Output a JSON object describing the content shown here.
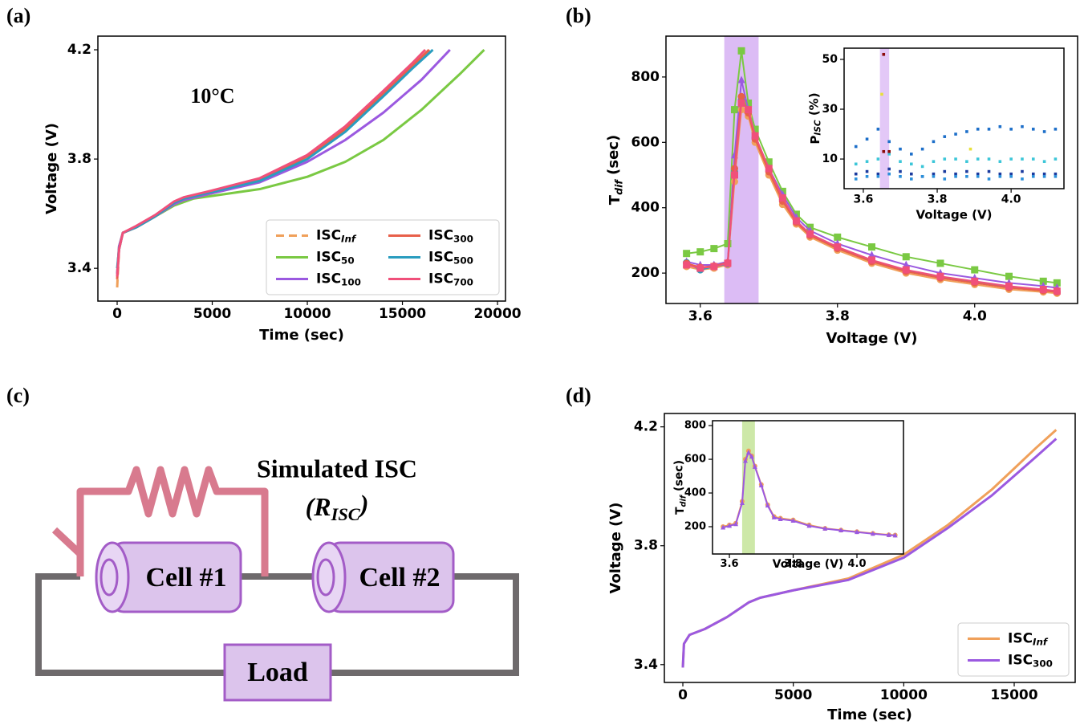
{
  "chart_data": [
    {
      "type": "line",
      "panel_label": "(a)",
      "annotation": "10°C",
      "xlabel": "Time (sec)",
      "ylabel": "Voltage (V)",
      "xlim": [
        -1013,
        20420
      ],
      "xticks": [
        0,
        5000,
        10000,
        15000,
        20000
      ],
      "ylim": [
        3.28,
        4.25
      ],
      "yticks": [
        3.4,
        3.8,
        4.2
      ],
      "legend": "lower right",
      "legend_columns": 2,
      "series": [
        {
          "name": "ISC_Inf",
          "color": "#f0a05a",
          "linestyle": "dashed",
          "x": [
            0,
            100,
            300,
            1000,
            2000,
            3000,
            3500,
            5000,
            7500,
            10000,
            12000,
            14000,
            15500,
            16500
          ],
          "values": [
            3.33,
            3.47,
            3.53,
            3.55,
            3.59,
            3.64,
            3.655,
            3.68,
            3.725,
            3.81,
            3.91,
            4.04,
            4.14,
            4.2
          ]
        },
        {
          "name": "ISC_50",
          "color": "#7ac943",
          "x": [
            0,
            100,
            300,
            1000,
            2000,
            3000,
            4000,
            5000,
            7500,
            10000,
            12000,
            14000,
            16000,
            18000,
            19300
          ],
          "values": [
            3.38,
            3.48,
            3.53,
            3.55,
            3.59,
            3.63,
            3.655,
            3.665,
            3.69,
            3.735,
            3.79,
            3.87,
            3.98,
            4.11,
            4.2
          ]
        },
        {
          "name": "ISC_100",
          "color": "#9b59e0",
          "x": [
            0,
            100,
            300,
            1000,
            2000,
            3000,
            3500,
            5000,
            7500,
            10000,
            12000,
            14000,
            16000,
            17500
          ],
          "values": [
            3.38,
            3.48,
            3.53,
            3.55,
            3.59,
            3.635,
            3.65,
            3.675,
            3.715,
            3.79,
            3.87,
            3.97,
            4.09,
            4.2
          ]
        },
        {
          "name": "ISC_300",
          "color": "#e8604a",
          "x": [
            0,
            100,
            300,
            1000,
            2000,
            3000,
            3500,
            5000,
            7500,
            10000,
            12000,
            14000,
            15500,
            16400
          ],
          "values": [
            3.36,
            3.47,
            3.53,
            3.55,
            3.59,
            3.64,
            3.655,
            3.68,
            3.725,
            3.81,
            3.91,
            4.04,
            4.14,
            4.2
          ]
        },
        {
          "name": "ISC_500",
          "color": "#2a9dbf",
          "x": [
            0,
            100,
            300,
            1000,
            2000,
            3000,
            3500,
            5000,
            7500,
            10000,
            12000,
            14000,
            15500,
            16600
          ],
          "values": [
            3.4,
            3.47,
            3.53,
            3.55,
            3.59,
            3.64,
            3.655,
            3.68,
            3.72,
            3.8,
            3.9,
            4.03,
            4.13,
            4.2
          ]
        },
        {
          "name": "ISC_700",
          "color": "#f0507a",
          "x": [
            0,
            100,
            300,
            1000,
            2000,
            3000,
            3500,
            5000,
            7500,
            10000,
            12000,
            14000,
            15500,
            16200
          ],
          "values": [
            3.37,
            3.47,
            3.53,
            3.555,
            3.595,
            3.645,
            3.66,
            3.685,
            3.73,
            3.815,
            3.92,
            4.05,
            4.15,
            4.2
          ]
        }
      ]
    },
    {
      "type": "line",
      "panel_label": "(b)",
      "xlabel": "Voltage (V)",
      "ylabel": "T_dif (sec)",
      "xlim": [
        3.55,
        4.15
      ],
      "xticks": [
        3.6,
        3.8,
        {
          "value": 4,
          "label": "4.0"
        }
      ],
      "ylim": [
        107,
        925
      ],
      "yticks": [
        200,
        400,
        600,
        800
      ],
      "highlight": [
        3.635,
        3.685
      ],
      "highlight_color": "#dcbcf5",
      "x": [
        3.58,
        3.6,
        3.62,
        3.64,
        3.65,
        3.66,
        3.67,
        3.68,
        3.7,
        3.72,
        3.74,
        3.76,
        3.8,
        3.85,
        3.9,
        3.95,
        4.0,
        4.05,
        4.1,
        4.12
      ],
      "series": [
        {
          "color": "#7ac943",
          "marker": "square",
          "values": [
            260,
            265,
            275,
            290,
            700,
            880,
            720,
            640,
            540,
            450,
            380,
            340,
            310,
            280,
            250,
            230,
            210,
            190,
            175,
            170
          ]
        },
        {
          "color": "#9b59e0",
          "marker": "triangle",
          "values": [
            235,
            225,
            225,
            235,
            560,
            790,
            700,
            620,
            520,
            440,
            370,
            330,
            290,
            255,
            225,
            200,
            185,
            170,
            160,
            155
          ]
        },
        {
          "color": "#f0a05a",
          "marker": "circle",
          "values": [
            220,
            210,
            215,
            225,
            480,
            700,
            680,
            600,
            500,
            410,
            350,
            310,
            270,
            230,
            200,
            180,
            165,
            150,
            142,
            138
          ]
        },
        {
          "color": "#2a9dbf",
          "marker": "circle",
          "values": [
            232,
            210,
            220,
            228,
            510,
            730,
            695,
            615,
            515,
            425,
            358,
            318,
            278,
            238,
            208,
            188,
            172,
            157,
            148,
            143
          ]
        },
        {
          "color": "#e8604a",
          "marker": "circle",
          "values": [
            230,
            218,
            222,
            232,
            520,
            740,
            690,
            610,
            510,
            420,
            355,
            315,
            275,
            235,
            205,
            185,
            170,
            155,
            146,
            142
          ]
        },
        {
          "color": "#f0507a",
          "marker": "square",
          "values": [
            225,
            215,
            220,
            230,
            500,
            720,
            700,
            620,
            520,
            430,
            360,
            320,
            280,
            240,
            210,
            190,
            175,
            160,
            150,
            145
          ]
        }
      ]
    },
    {
      "type": "scatter",
      "xlabel": "Voltage (V)",
      "ylabel": "P_ISC (%)",
      "xlim": [
        3.548,
        4.143
      ],
      "xticks": [
        3.6,
        3.8,
        {
          "value": 4,
          "label": "4.0"
        }
      ],
      "ylim": [
        -1.9,
        54.5
      ],
      "yticks": [
        10,
        30,
        50
      ],
      "highlight": [
        3.645,
        3.67
      ],
      "highlight_color": "#e3c8f7",
      "x": [
        3.58,
        3.61,
        3.64,
        3.67,
        3.7,
        3.73,
        3.76,
        3.79,
        3.82,
        3.85,
        3.88,
        3.91,
        3.94,
        3.97,
        4.0,
        4.03,
        4.06,
        4.09,
        4.12
      ],
      "series": [
        {
          "color": "#1d6fc9",
          "marker": "square",
          "values": [
            15,
            18,
            22,
            17,
            14,
            12,
            14,
            17,
            19,
            20,
            21,
            22,
            22,
            23,
            22,
            23,
            22,
            21,
            22
          ]
        },
        {
          "color": "#3cc6d8",
          "marker": "square",
          "values": [
            8,
            9,
            10,
            12,
            9,
            8,
            7,
            9,
            10,
            10,
            9,
            10,
            10,
            9,
            10,
            10,
            10,
            9,
            10
          ]
        },
        {
          "color": "#1a3a9e",
          "marker": "square",
          "values": [
            4,
            5,
            4,
            6,
            5,
            4,
            3,
            4,
            5,
            4,
            5,
            4,
            5,
            4,
            4,
            5,
            4,
            4,
            4
          ]
        },
        {
          "color": "#2a8fd9",
          "marker": "square",
          "values": [
            2,
            3,
            3,
            4,
            3,
            2,
            3,
            3,
            2,
            3,
            3,
            3,
            2,
            3,
            3,
            2,
            3,
            3,
            3
          ]
        },
        {
          "color": "#e8e03a",
          "marker": "square",
          "x": [
            3.65,
            3.89
          ],
          "values": [
            36,
            14
          ]
        },
        {
          "color": "#8b0a0a",
          "marker": "square",
          "x": [
            3.655,
            3.655,
            3.67
          ],
          "values": [
            52,
            13,
            13
          ]
        }
      ]
    },
    {
      "type": "line",
      "panel_label": "(d)",
      "xlabel": "Time (sec)",
      "ylabel": "Voltage (V)",
      "xlim": [
        -836,
        17760
      ],
      "xticks": [
        0,
        5000,
        10000,
        15000
      ],
      "ylim": [
        3.34,
        4.245
      ],
      "yticks": [
        3.4,
        3.8,
        4.2
      ],
      "legend": "lower right",
      "legend_columns": 1,
      "series": [
        {
          "name": "ISC_Inf",
          "color": "#f0a05a",
          "x": [
            0,
            50,
            300,
            1000,
            2000,
            3000,
            3500,
            5000,
            7500,
            10000,
            12000,
            14000,
            16000,
            16900
          ],
          "values": [
            3.39,
            3.47,
            3.5,
            3.52,
            3.56,
            3.61,
            3.625,
            3.65,
            3.69,
            3.77,
            3.87,
            3.99,
            4.13,
            4.19
          ]
        },
        {
          "name": "ISC_300",
          "color": "#9b59e0",
          "x": [
            0,
            50,
            300,
            1000,
            2000,
            3000,
            3500,
            5000,
            7500,
            10000,
            12000,
            14000,
            16000,
            16900
          ],
          "values": [
            3.39,
            3.47,
            3.5,
            3.52,
            3.56,
            3.61,
            3.625,
            3.65,
            3.685,
            3.76,
            3.86,
            3.97,
            4.1,
            4.16
          ]
        }
      ]
    },
    {
      "type": "line",
      "xlabel": "Voltage (V)",
      "ylabel": "T_dif (sec)",
      "xlim": [
        3.547,
        4.146
      ],
      "xticks": [
        3.6,
        3.8,
        {
          "value": 4,
          "label": "4.0"
        }
      ],
      "ylim": [
        38,
        829
      ],
      "yticks": [
        200,
        400,
        600,
        800
      ],
      "highlight": [
        3.64,
        3.68
      ],
      "highlight_color": "#cde8a8",
      "x": [
        3.58,
        3.6,
        3.62,
        3.64,
        3.65,
        3.66,
        3.67,
        3.68,
        3.7,
        3.72,
        3.74,
        3.76,
        3.8,
        3.85,
        3.9,
        3.95,
        4.0,
        4.05,
        4.1,
        4.12
      ],
      "series": [
        {
          "color": "#f0a05a",
          "marker": "circle",
          "values": [
            200,
            210,
            220,
            350,
            600,
            650,
            620,
            560,
            450,
            330,
            260,
            250,
            240,
            210,
            190,
            180,
            170,
            160,
            152,
            150
          ]
        },
        {
          "color": "#9b59e0",
          "marker": "triangle",
          "values": [
            195,
            205,
            215,
            340,
            590,
            640,
            615,
            555,
            445,
            325,
            255,
            245,
            235,
            205,
            188,
            178,
            168,
            158,
            150,
            148
          ]
        }
      ]
    }
  ],
  "diagram": {
    "panel_label": "(c)",
    "title": "Simulated ISC",
    "resistor": "(R_ISC)",
    "cells": [
      "Cell #1",
      "Cell #2"
    ],
    "load": "Load"
  }
}
